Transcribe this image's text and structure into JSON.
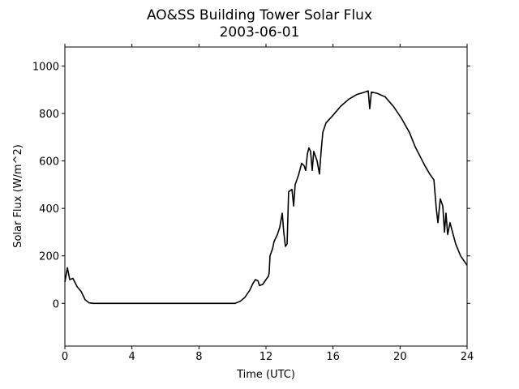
{
  "chart_data": {
    "type": "line",
    "title": "AO&SS Building Tower Solar Flux",
    "subtitle": "2003-06-01",
    "x_label": "Time (UTC)",
    "y_label": "Solar Flux (W/m^2)",
    "xlim": [
      0,
      24
    ],
    "xticks": [
      0,
      4,
      8,
      12,
      16,
      20,
      24
    ],
    "ylim": [
      -180,
      1080
    ],
    "yticks": [
      0,
      200,
      400,
      600,
      800,
      1000
    ],
    "grid": false,
    "series": [
      {
        "name": "Solar Flux",
        "color": "#000000",
        "x": [
          0,
          0.15,
          0.29,
          0.48,
          0.73,
          0.97,
          1.21,
          1.45,
          1.69,
          10.16,
          10.45,
          10.74,
          11.03,
          11.23,
          11.37,
          11.52,
          11.61,
          11.81,
          12.0,
          12.15,
          12.19,
          12.24,
          12.39,
          12.48,
          12.68,
          12.82,
          12.97,
          13.06,
          13.16,
          13.26,
          13.35,
          13.55,
          13.65,
          13.74,
          13.94,
          14.13,
          14.27,
          14.37,
          14.47,
          14.56,
          14.66,
          14.76,
          14.85,
          14.95,
          15.05,
          15.19,
          15.29,
          15.39,
          15.58,
          15.97,
          16.45,
          16.94,
          17.42,
          17.66,
          17.9,
          18.1,
          18.19,
          18.29,
          18.63,
          19.11,
          19.6,
          20.08,
          20.56,
          20.9,
          21.19,
          21.48,
          21.77,
          22.02,
          22.16,
          22.26,
          22.4,
          22.55,
          22.65,
          22.74,
          22.84,
          22.98,
          23.13,
          23.32,
          23.61,
          24
        ],
        "values": [
          90,
          150,
          100,
          105,
          70,
          50,
          15,
          2,
          0,
          0,
          8,
          25,
          55,
          85,
          100,
          95,
          75,
          80,
          100,
          115,
          130,
          200,
          230,
          260,
          290,
          320,
          380,
          300,
          240,
          250,
          470,
          480,
          410,
          500,
          540,
          590,
          580,
          560,
          630,
          655,
          640,
          560,
          640,
          620,
          600,
          545,
          640,
          720,
          760,
          790,
          830,
          860,
          880,
          885,
          890,
          895,
          820,
          890,
          885,
          870,
          830,
          780,
          720,
          660,
          620,
          580,
          545,
          520,
          400,
          340,
          440,
          410,
          300,
          380,
          290,
          340,
          300,
          250,
          200,
          160
        ]
      }
    ]
  }
}
